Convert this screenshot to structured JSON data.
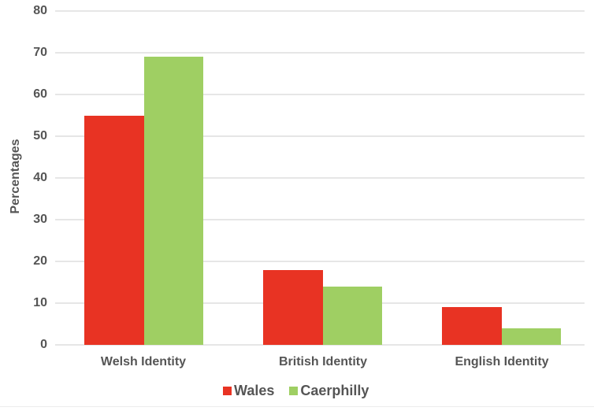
{
  "chart_data": {
    "type": "bar",
    "title": "",
    "xlabel": "",
    "ylabel": "Percentages",
    "categories": [
      "Welsh Identity",
      "British Identity",
      "English Identity"
    ],
    "series": [
      {
        "name": "Wales",
        "color": "#E83323",
        "values": [
          55,
          18,
          9
        ]
      },
      {
        "name": "Caerphilly",
        "color": "#9FCF63",
        "values": [
          69,
          14,
          4
        ]
      }
    ],
    "ylim": [
      0,
      80
    ],
    "yticks": [
      0,
      10,
      20,
      30,
      40,
      50,
      60,
      70,
      80
    ],
    "grid": true,
    "legend_position": "bottom"
  },
  "axis": {
    "ylabel": "Percentages",
    "yticks": [
      "0",
      "10",
      "20",
      "30",
      "40",
      "50",
      "60",
      "70",
      "80"
    ]
  },
  "categories": [
    "Welsh Identity",
    "British Identity",
    "English Identity"
  ],
  "legend": [
    {
      "label": "Wales",
      "color": "#E83323"
    },
    {
      "label": "Caerphilly",
      "color": "#9FCF63"
    }
  ]
}
